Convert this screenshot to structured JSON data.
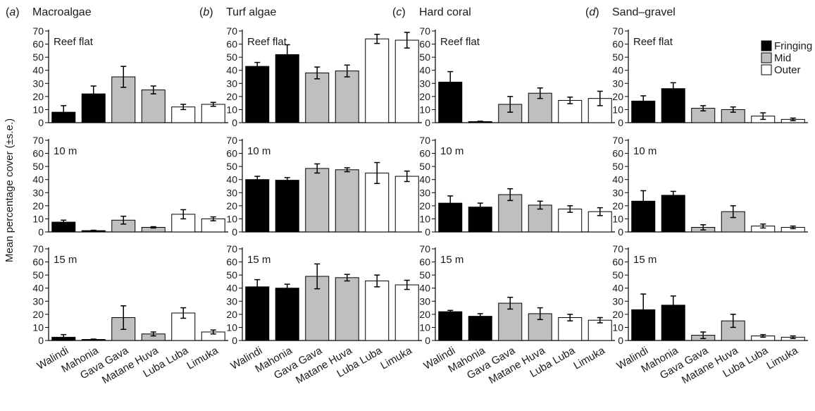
{
  "figure": {
    "ylabel": "Mean percentage cover (±s.e.)",
    "ylim": [
      0,
      70
    ],
    "yticks": [
      0,
      10,
      20,
      30,
      40,
      50,
      60,
      70
    ],
    "categories": [
      "Walindi",
      "Mahonia",
      "Gava Gava",
      "Matane Huva",
      "Luba Luba",
      "Limuka"
    ],
    "rows": [
      "Reef flat",
      "10 m",
      "15 m"
    ],
    "legend": [
      {
        "label": "Fringing",
        "color": "#000000"
      },
      {
        "label": "Mid",
        "color": "#bfbfbf"
      },
      {
        "label": "Outer",
        "color": "#ffffff"
      }
    ]
  },
  "chart_data": [
    {
      "type": "bar",
      "panel_letter": "a",
      "title": "Macroalgae",
      "ylabel": "Mean percentage cover (±s.e.)",
      "ylim": [
        0,
        70
      ],
      "categories": [
        "Walindi",
        "Mahonia",
        "Gava Gava",
        "Matane Huva",
        "Luba Luba",
        "Limuka"
      ],
      "groups": [
        "Fringing",
        "Fringing",
        "Mid",
        "Mid",
        "Outer",
        "Outer"
      ],
      "series": [
        {
          "name": "Reef flat",
          "values": [
            8,
            22,
            35,
            25,
            12,
            14
          ],
          "se": [
            5,
            6,
            8,
            3,
            2,
            1.5
          ]
        },
        {
          "name": "10 m",
          "values": [
            7.5,
            1,
            9,
            3.5,
            13.5,
            10
          ],
          "se": [
            1.5,
            0.3,
            3,
            0.5,
            3.5,
            1.5
          ]
        },
        {
          "name": "15 m",
          "values": [
            2.5,
            0.8,
            17.5,
            5,
            21,
            6.5
          ],
          "se": [
            2,
            0.3,
            9,
            1.5,
            4,
            1.5
          ]
        }
      ]
    },
    {
      "type": "bar",
      "panel_letter": "b",
      "title": "Turf algae",
      "ylim": [
        0,
        70
      ],
      "categories": [
        "Walindi",
        "Mahonia",
        "Gava Gava",
        "Matane Huva",
        "Luba Luba",
        "Limuka"
      ],
      "groups": [
        "Fringing",
        "Fringing",
        "Mid",
        "Mid",
        "Outer",
        "Outer"
      ],
      "series": [
        {
          "name": "Reef flat",
          "values": [
            43,
            52,
            38,
            39.5,
            64,
            63
          ],
          "se": [
            3,
            7.5,
            4.5,
            4.5,
            3.5,
            6
          ]
        },
        {
          "name": "10 m",
          "values": [
            40,
            39.5,
            48.5,
            47.5,
            45,
            42.5
          ],
          "se": [
            2.5,
            2,
            3.5,
            1.5,
            8,
            4
          ]
        },
        {
          "name": "15 m",
          "values": [
            41,
            40,
            49,
            48,
            45.5,
            42.5
          ],
          "se": [
            5.5,
            3,
            9.5,
            2.5,
            4.5,
            3.5
          ]
        }
      ]
    },
    {
      "type": "bar",
      "panel_letter": "c",
      "title": "Hard coral",
      "ylim": [
        0,
        70
      ],
      "categories": [
        "Walindi",
        "Mahonia",
        "Gava Gava",
        "Matane Huva",
        "Luba Luba",
        "Limuka"
      ],
      "groups": [
        "Fringing",
        "Fringing",
        "Mid",
        "Mid",
        "Outer",
        "Outer"
      ],
      "series": [
        {
          "name": "Reef flat",
          "values": [
            31,
            0.8,
            14,
            22.5,
            17,
            18.5
          ],
          "se": [
            8,
            0.3,
            6,
            4,
            2.5,
            5.5
          ]
        },
        {
          "name": "10 m",
          "values": [
            22,
            19,
            28.5,
            20.5,
            17.5,
            15.5
          ],
          "se": [
            5.5,
            3,
            4.5,
            3,
            2.5,
            3
          ]
        },
        {
          "name": "15 m",
          "values": [
            22,
            18.5,
            28.5,
            20.5,
            17.5,
            15.5
          ],
          "se": [
            1,
            2,
            4.5,
            4.5,
            2.5,
            2
          ]
        }
      ]
    },
    {
      "type": "bar",
      "panel_letter": "d",
      "title": "Sand–gravel",
      "ylim": [
        0,
        70
      ],
      "categories": [
        "Walindi",
        "Mahonia",
        "Gava Gava",
        "Matane Huva",
        "Luba Luba",
        "Limuka"
      ],
      "groups": [
        "Fringing",
        "Fringing",
        "Mid",
        "Mid",
        "Outer",
        "Outer"
      ],
      "legend": [
        "Fringing",
        "Mid",
        "Outer"
      ],
      "series": [
        {
          "name": "Reef flat",
          "values": [
            16.5,
            26,
            11,
            10,
            5,
            2.5
          ],
          "se": [
            4,
            4.5,
            2,
            2,
            2.5,
            1
          ]
        },
        {
          "name": "10 m",
          "values": [
            23.5,
            28,
            3.5,
            15.5,
            4.5,
            3.5
          ],
          "se": [
            8,
            3,
            2,
            4.5,
            1.5,
            1
          ]
        },
        {
          "name": "15 m",
          "values": [
            23.5,
            27,
            4,
            15,
            3.5,
            2.5
          ],
          "se": [
            12,
            7,
            2.5,
            5,
            1,
            1
          ]
        }
      ]
    }
  ]
}
